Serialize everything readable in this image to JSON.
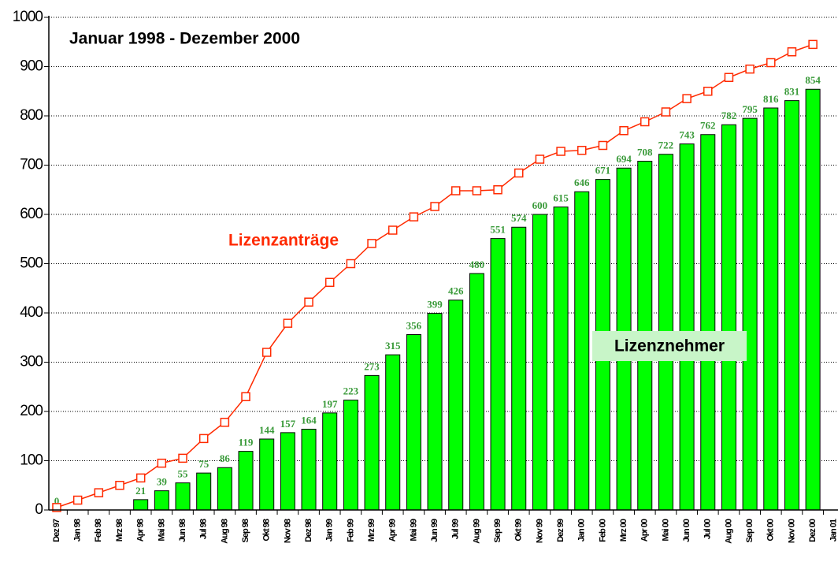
{
  "chart_data": {
    "type": "bar",
    "title": "Januar 1998 - Dezember 2000",
    "categories": [
      "Dez 97",
      "Jan 98",
      "Feb 98",
      "Mrz 98",
      "Apr 98",
      "Mai 98",
      "Jun 98",
      "Jul 98",
      "Aug 98",
      "Sep 98",
      "Okt 98",
      "Nov 98",
      "Dez 98",
      "Jan 99",
      "Feb 99",
      "Mrz 99",
      "Apr 99",
      "Mai 99",
      "Jun 99",
      "Jul 99",
      "Aug 99",
      "Sep 99",
      "Okt 99",
      "Nov 99",
      "Dez 99",
      "Jan 00",
      "Feb 00",
      "Mrz 00",
      "Apr 00",
      "Mai 00",
      "Jun 00",
      "Jul 00",
      "Aug 00",
      "Sep 00",
      "Okt 00",
      "Nov 00",
      "Dez 00",
      "Jan 01"
    ],
    "series": [
      {
        "name": "Lizenzanträge",
        "type": "line",
        "color": "#ff2a00",
        "values": [
          5,
          20,
          35,
          50,
          65,
          95,
          105,
          145,
          178,
          230,
          320,
          379,
          422,
          462,
          500,
          541,
          568,
          595,
          616,
          648,
          648,
          650,
          684,
          712,
          728,
          730,
          740,
          770,
          788,
          808,
          835,
          850,
          878,
          895,
          908,
          930,
          945,
          null
        ]
      },
      {
        "name": "Lizenznehmer",
        "type": "bar",
        "color": "#00ff00",
        "values": [
          0,
          null,
          null,
          null,
          21,
          39,
          55,
          75,
          86,
          119,
          144,
          157,
          164,
          197,
          223,
          273,
          315,
          356,
          399,
          426,
          480,
          551,
          574,
          600,
          615,
          646,
          671,
          694,
          708,
          722,
          743,
          762,
          782,
          795,
          816,
          831,
          854,
          null
        ]
      }
    ],
    "ylim": [
      0,
      1000
    ],
    "yticks": [
      0,
      100,
      200,
      300,
      400,
      500,
      600,
      700,
      800,
      900,
      1000
    ],
    "grid": true
  }
}
